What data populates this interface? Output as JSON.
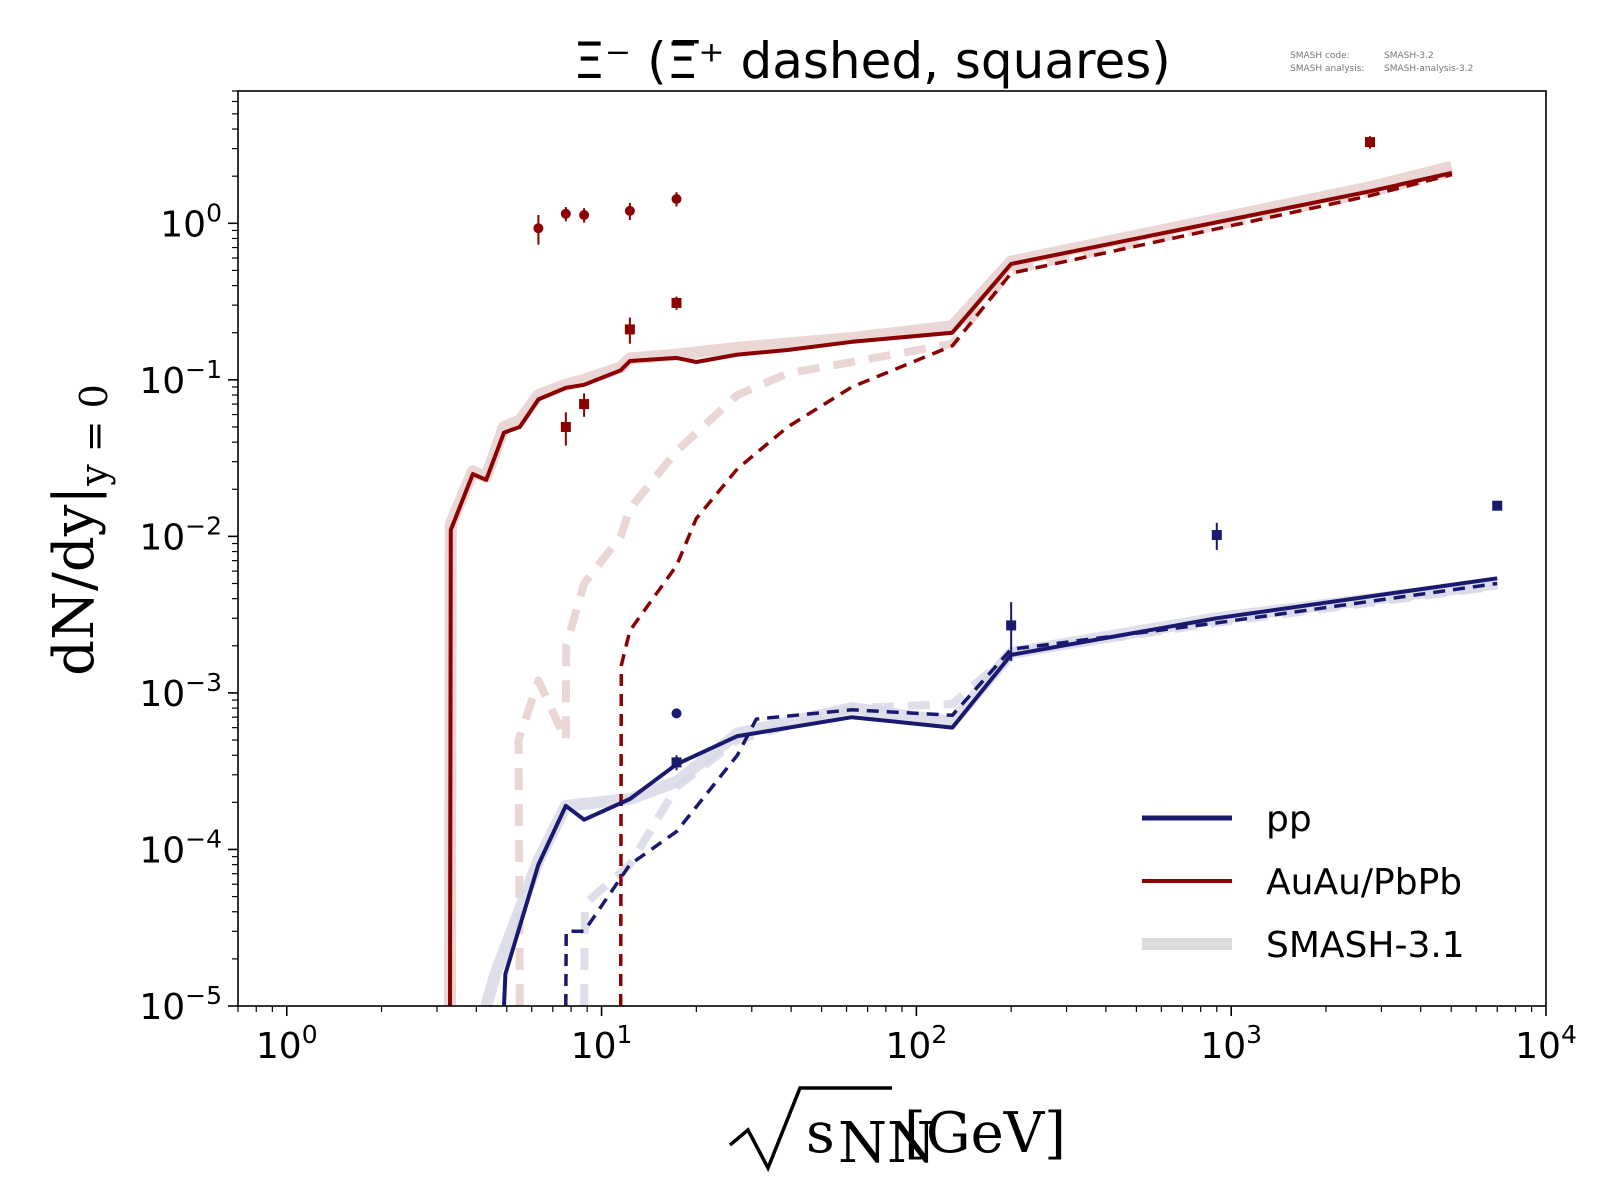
{
  "chart_data": {
    "type": "line",
    "title": "Ξ⁻ (Ξ̅⁺ dashed, squares)",
    "meta_text": [
      {
        "label": "SMASH code:",
        "value": "SMASH-3.2"
      },
      {
        "label": "SMASH analysis:",
        "value": "SMASH-analysis-3.2"
      }
    ],
    "xlabel_main": "s",
    "xlabel_sub": "NN",
    "xlabel_unit": "[GeV]",
    "ylabel_main": "dN/dy|",
    "ylabel_sub": "y = 0",
    "xscale": "log",
    "yscale": "log",
    "xlim": [
      0.7,
      10000
    ],
    "ylim": [
      1e-05,
      7
    ],
    "x_ticks": [
      {
        "value": 1,
        "base": "10",
        "exp": "0"
      },
      {
        "value": 10,
        "base": "10",
        "exp": "1"
      },
      {
        "value": 100,
        "base": "10",
        "exp": "2"
      },
      {
        "value": 1000,
        "base": "10",
        "exp": "3"
      },
      {
        "value": 10000,
        "base": "10",
        "exp": "4"
      }
    ],
    "y_ticks": [
      {
        "value": 1e-05,
        "base": "10",
        "exp": "−5"
      },
      {
        "value": 0.0001,
        "base": "10",
        "exp": "−4"
      },
      {
        "value": 0.001,
        "base": "10",
        "exp": "−3"
      },
      {
        "value": 0.01,
        "base": "10",
        "exp": "−2"
      },
      {
        "value": 0.1,
        "base": "10",
        "exp": "−1"
      },
      {
        "value": 1,
        "base": "10",
        "exp": "0"
      }
    ],
    "grid": false,
    "legend_position": "bottom-right",
    "legend": [
      {
        "label": "pp",
        "color": "#191970",
        "style": "solid"
      },
      {
        "label": "AuAu/PbPb",
        "color": "#8b0000",
        "style": "solid"
      },
      {
        "label": "SMASH-3.1",
        "color": "#dcdcdc",
        "style": "thick"
      }
    ],
    "colors": {
      "pp": "#191970",
      "AuAu": "#8b0000",
      "reference_AuAu": "#e8cfcf",
      "reference_pp": "#d8d9e6"
    },
    "series": [
      {
        "group": "AuAu",
        "kind": "solid",
        "points": [
          [
            3.3,
            1e-05
          ],
          [
            3.32,
            0.011
          ],
          [
            3.9,
            0.025
          ],
          [
            4.3,
            0.023
          ],
          [
            4.9,
            0.046
          ],
          [
            5.5,
            0.05
          ],
          [
            6.3,
            0.075
          ],
          [
            7.7,
            0.089
          ],
          [
            8.8,
            0.093
          ],
          [
            11.5,
            0.115
          ],
          [
            12.3,
            0.132
          ],
          [
            17.3,
            0.138
          ],
          [
            20,
            0.13
          ],
          [
            27,
            0.145
          ],
          [
            39,
            0.155
          ],
          [
            62.4,
            0.175
          ],
          [
            130,
            0.2
          ],
          [
            200,
            0.55
          ],
          [
            2760,
            1.6
          ],
          [
            5020,
            2.1
          ]
        ]
      },
      {
        "group": "AuAu",
        "kind": "dashed",
        "points": [
          [
            11.5,
            1e-05
          ],
          [
            11.55,
            0.0015
          ],
          [
            12.3,
            0.0025
          ],
          [
            17.3,
            0.0065
          ],
          [
            20,
            0.013
          ],
          [
            27,
            0.027
          ],
          [
            39,
            0.05
          ],
          [
            62.4,
            0.09
          ],
          [
            130,
            0.165
          ],
          [
            200,
            0.48
          ],
          [
            2760,
            1.5
          ],
          [
            5020,
            2.05
          ]
        ]
      },
      {
        "group": "AuAu",
        "kind": "ref_solid",
        "points": [
          [
            3.3,
            1e-05
          ],
          [
            3.32,
            0.012
          ],
          [
            3.9,
            0.026
          ],
          [
            4.3,
            0.024
          ],
          [
            4.9,
            0.05
          ],
          [
            5.5,
            0.055
          ],
          [
            6.3,
            0.08
          ],
          [
            7.7,
            0.093
          ],
          [
            8.8,
            0.1
          ],
          [
            11.5,
            0.12
          ],
          [
            12.3,
            0.137
          ],
          [
            17.3,
            0.145
          ],
          [
            27,
            0.16
          ],
          [
            62.4,
            0.185
          ],
          [
            130,
            0.22
          ],
          [
            200,
            0.57
          ],
          [
            2760,
            1.7
          ],
          [
            5020,
            2.3
          ]
        ]
      },
      {
        "group": "AuAu",
        "kind": "ref_dashed",
        "points": [
          [
            5.5,
            1e-05
          ],
          [
            5.45,
            0.0005
          ],
          [
            6.3,
            0.0012
          ],
          [
            7.7,
            0.0005
          ],
          [
            7.72,
            0.002
          ],
          [
            8.8,
            0.005
          ],
          [
            11.5,
            0.01
          ],
          [
            12.3,
            0.015
          ],
          [
            17.3,
            0.035
          ],
          [
            27,
            0.08
          ],
          [
            39,
            0.11
          ],
          [
            62.4,
            0.13
          ],
          [
            130,
            0.17
          ],
          [
            200,
            0.5
          ],
          [
            2760,
            1.55
          ],
          [
            5020,
            2.1
          ]
        ]
      },
      {
        "group": "pp",
        "kind": "solid",
        "points": [
          [
            4.9,
            1e-05
          ],
          [
            4.95,
            1.6e-05
          ],
          [
            6.3,
            8e-05
          ],
          [
            7.7,
            0.00019
          ],
          [
            8.8,
            0.000155
          ],
          [
            12.3,
            0.00021
          ],
          [
            17.3,
            0.00035
          ],
          [
            27,
            0.00053
          ],
          [
            62.4,
            0.0007
          ],
          [
            130,
            0.0006
          ],
          [
            200,
            0.00175
          ],
          [
            900,
            0.003
          ],
          [
            7000,
            0.0054
          ]
        ]
      },
      {
        "group": "pp",
        "kind": "dashed",
        "points": [
          [
            7.7,
            1e-05
          ],
          [
            7.72,
            3e-05
          ],
          [
            8.8,
            3e-05
          ],
          [
            12.3,
            8e-05
          ],
          [
            17.3,
            0.00013
          ],
          [
            27,
            0.0004
          ],
          [
            31,
            0.00068
          ],
          [
            62.4,
            0.00078
          ],
          [
            130,
            0.00072
          ],
          [
            200,
            0.0019
          ],
          [
            900,
            0.0028
          ],
          [
            7000,
            0.005
          ]
        ]
      },
      {
        "group": "pp",
        "kind": "ref_solid",
        "points": [
          [
            4.3,
            1e-05
          ],
          [
            4.6,
            1.6e-05
          ],
          [
            6.3,
            8.5e-05
          ],
          [
            7.7,
            0.00019
          ],
          [
            12.3,
            0.00021
          ],
          [
            17.3,
            0.00027
          ],
          [
            27,
            0.00055
          ],
          [
            62.4,
            0.0008
          ],
          [
            130,
            0.00065
          ],
          [
            200,
            0.0018
          ],
          [
            900,
            0.003
          ],
          [
            7000,
            0.005
          ]
        ]
      },
      {
        "group": "pp",
        "kind": "ref_dashed",
        "points": [
          [
            8.8,
            1e-05
          ],
          [
            8.85,
            4.5e-05
          ],
          [
            12.3,
            8e-05
          ],
          [
            17.3,
            0.00025
          ],
          [
            27,
            0.0005
          ],
          [
            62.4,
            0.0008
          ],
          [
            130,
            0.00085
          ],
          [
            200,
            0.0018
          ],
          [
            900,
            0.0028
          ],
          [
            7000,
            0.0048
          ]
        ]
      }
    ],
    "data_points": [
      {
        "group": "AuAu",
        "marker": "circle",
        "x": 6.3,
        "y": 0.93,
        "err": 0.2
      },
      {
        "group": "AuAu",
        "marker": "circle",
        "x": 7.7,
        "y": 1.15,
        "err": 0.12
      },
      {
        "group": "AuAu",
        "marker": "circle",
        "x": 8.8,
        "y": 1.13,
        "err": 0.12
      },
      {
        "group": "AuAu",
        "marker": "circle",
        "x": 12.3,
        "y": 1.2,
        "err": 0.15
      },
      {
        "group": "AuAu",
        "marker": "circle",
        "x": 17.3,
        "y": 1.43,
        "err": 0.15
      },
      {
        "group": "AuAu",
        "marker": "square",
        "x": 7.7,
        "y": 0.05,
        "err": 0.012
      },
      {
        "group": "AuAu",
        "marker": "square",
        "x": 8.8,
        "y": 0.07,
        "err": 0.012
      },
      {
        "group": "AuAu",
        "marker": "square",
        "x": 12.3,
        "y": 0.21,
        "err": 0.04
      },
      {
        "group": "AuAu",
        "marker": "square",
        "x": 17.3,
        "y": 0.31,
        "err": 0.03
      },
      {
        "group": "AuAu",
        "marker": "square",
        "x": 2760,
        "y": 3.3,
        "err": 0.3
      },
      {
        "group": "pp",
        "marker": "circle",
        "x": 17.3,
        "y": 0.00074,
        "err": 0
      },
      {
        "group": "pp",
        "marker": "square",
        "x": 17.3,
        "y": 0.00036,
        "err": 4e-05
      },
      {
        "group": "pp",
        "marker": "square",
        "x": 200,
        "y": 0.0027,
        "err": 0.0011
      },
      {
        "group": "pp",
        "marker": "square",
        "x": 900,
        "y": 0.0102,
        "err": 0.002
      },
      {
        "group": "pp",
        "marker": "square",
        "x": 7000,
        "y": 0.0157,
        "err": 0
      }
    ]
  }
}
